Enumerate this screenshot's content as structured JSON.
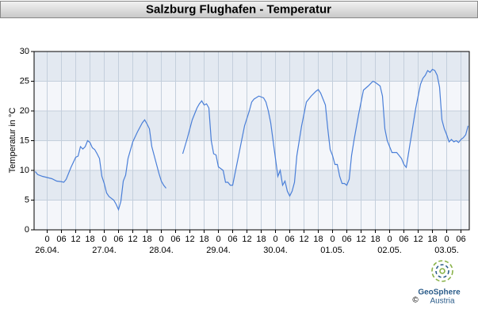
{
  "chart_data": {
    "type": "line",
    "title": "Salzburg Flughafen - Temperatur",
    "y_label": "Temperatur in °C",
    "x": [
      -5,
      -4,
      -2,
      0,
      2,
      4,
      6,
      7,
      8,
      10,
      12,
      13,
      14,
      15,
      16,
      17,
      18,
      19,
      20,
      21,
      22,
      23,
      24,
      25,
      26,
      28,
      29,
      30,
      31,
      32,
      33,
      34,
      36,
      38,
      40,
      41,
      42,
      43,
      44,
      45,
      46,
      47,
      48,
      49,
      50,
      52,
      57,
      59,
      61,
      63,
      64,
      65,
      66,
      67,
      68,
      69,
      70,
      71,
      72,
      73,
      74,
      75,
      76,
      77,
      78,
      79,
      81,
      83,
      85,
      86,
      87,
      89,
      91,
      92,
      93,
      94,
      95,
      96,
      97,
      98,
      99,
      100,
      101,
      102,
      103,
      104,
      105,
      107,
      109,
      111,
      113,
      114,
      115,
      116,
      117,
      118,
      119,
      120,
      121,
      122,
      123,
      124,
      125,
      126,
      127,
      128,
      129,
      131,
      133,
      135,
      137,
      138,
      139,
      140,
      141,
      142,
      143,
      144,
      145,
      146,
      147,
      148,
      149,
      150,
      151,
      152,
      153,
      154,
      155,
      156,
      157,
      158,
      159,
      160,
      161,
      162,
      163,
      164,
      165,
      166,
      167,
      168,
      169,
      170,
      171,
      172,
      173,
      174,
      175,
      176,
      177
    ],
    "values": [
      9.8,
      9.3,
      9.0,
      8.8,
      8.6,
      8.2,
      8.1,
      8.0,
      8.5,
      10.5,
      12.2,
      12.4,
      14.0,
      13.6,
      14.0,
      15.0,
      14.7,
      13.8,
      13.5,
      12.8,
      12.0,
      9.0,
      7.8,
      6.2,
      5.6,
      5.0,
      4.3,
      3.4,
      4.8,
      8.2,
      9.2,
      12.0,
      14.8,
      16.5,
      18.0,
      18.5,
      17.8,
      17.0,
      14.0,
      12.5,
      11.0,
      9.5,
      8.2,
      7.5,
      7.0,
      null,
      12.8,
      15.5,
      18.5,
      20.5,
      21.2,
      21.7,
      21.0,
      21.2,
      20.5,
      15.0,
      12.8,
      12.6,
      10.6,
      10.3,
      10.0,
      8.0,
      8.0,
      7.5,
      7.5,
      9.5,
      13.5,
      17.5,
      20.0,
      21.5,
      22.0,
      22.5,
      22.2,
      21.5,
      20.0,
      18.0,
      15.0,
      12.0,
      9.0,
      10.0,
      7.5,
      8.2,
      6.5,
      5.7,
      6.5,
      8.0,
      12.5,
      17.5,
      21.5,
      22.5,
      23.3,
      23.6,
      23.0,
      22.0,
      21.0,
      17.0,
      13.5,
      12.5,
      11.0,
      11.0,
      9.0,
      7.8,
      7.8,
      7.5,
      8.5,
      12.5,
      15.0,
      19.5,
      23.5,
      24.2,
      25.0,
      24.8,
      24.5,
      24.2,
      22.5,
      17.0,
      15.0,
      14.0,
      13.0,
      13.0,
      13.0,
      12.5,
      12.0,
      11.0,
      10.5,
      13.0,
      15.5,
      18.0,
      20.5,
      22.5,
      24.5,
      25.5,
      26.0,
      26.8,
      26.5,
      27.0,
      26.8,
      26.0,
      24.0,
      18.5,
      17.0,
      16.0,
      14.8,
      15.2,
      14.8,
      15.0,
      14.7,
      15.2,
      15.5,
      16.0,
      17.5
    ],
    "color": "#4a7fd8",
    "xlim": [
      -5.5,
      177.5
    ],
    "ylim": [
      0,
      30
    ],
    "yticks": [
      0,
      5,
      10,
      15,
      20,
      25,
      30
    ],
    "xticks": [
      0,
      {
        "value": 6,
        "label": "06"
      },
      {
        "value": 12,
        "label": "12"
      },
      {
        "value": 18,
        "label": "18"
      },
      {
        "value": 24,
        "label": "0"
      },
      {
        "value": 30,
        "label": "06"
      },
      {
        "value": 36,
        "label": "12"
      },
      {
        "value": 42,
        "label": "18"
      },
      {
        "value": 48,
        "label": "0"
      },
      {
        "value": 54,
        "label": "06"
      },
      {
        "value": 60,
        "label": "12"
      },
      {
        "value": 66,
        "label": "18"
      },
      {
        "value": 72,
        "label": "0"
      },
      {
        "value": 78,
        "label": "06"
      },
      {
        "value": 84,
        "label": "12"
      },
      {
        "value": 90,
        "label": "18"
      },
      {
        "value": 96,
        "label": "0"
      },
      {
        "value": 102,
        "label": "06"
      },
      {
        "value": 108,
        "label": "12"
      },
      {
        "value": 114,
        "label": "18"
      },
      {
        "value": 120,
        "label": "0"
      },
      {
        "value": 126,
        "label": "06"
      },
      {
        "value": 132,
        "label": "12"
      },
      {
        "value": 138,
        "label": "18"
      },
      {
        "value": 144,
        "label": "0"
      },
      {
        "value": 150,
        "label": "06"
      },
      {
        "value": 156,
        "label": "12"
      },
      {
        "value": 162,
        "label": "18"
      },
      {
        "value": 168,
        "label": "0"
      },
      {
        "value": 174,
        "label": "06"
      }
    ],
    "date_labels": [
      {
        "value": 0,
        "label": "26.04."
      },
      {
        "value": 24,
        "label": "27.04."
      },
      {
        "value": 48,
        "label": "28.04."
      },
      {
        "value": 72,
        "label": "29.04."
      },
      {
        "value": 96,
        "label": "30.04."
      },
      {
        "value": 120,
        "label": "01.05."
      },
      {
        "value": 144,
        "label": "02.05."
      },
      {
        "value": 168,
        "label": "03.05."
      }
    ],
    "grid": true,
    "band_colors": [
      "#f4f6fa",
      "#e3e9f1"
    ]
  },
  "logo": {
    "name": "GeoSphere",
    "country": "Austria",
    "copyright": "©"
  }
}
